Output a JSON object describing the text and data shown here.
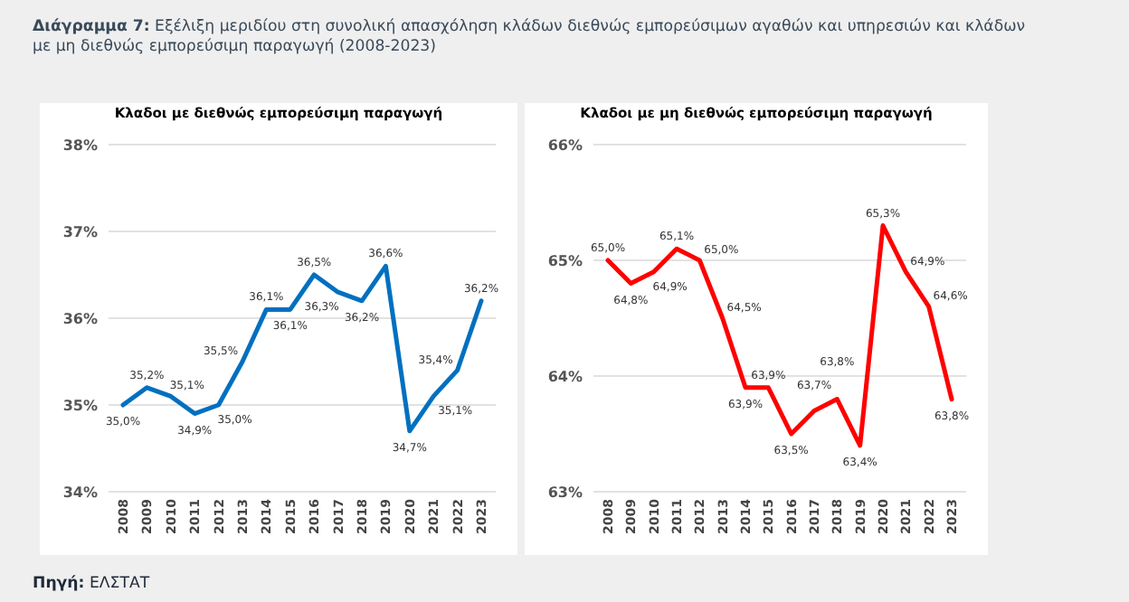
{
  "chart_data": [
    {
      "type": "line",
      "title": "Κλαδοι με διεθνώς εμπορεύσιμη παραγωγή",
      "annotations": [
        "Διάγραμμα 7: Εξέλιξη μεριδίου στη συνολική απασχόληση κλάδων διεθνώς εμπορεύσιμων αγαθών και υπηρεσιών και κλάδων με μη διεθνώς εμπορεύσιμη παραγωγή (2008-2023)",
        "Πηγή: ΕΛΣΤΑΤ"
      ],
      "categories": [
        "2008",
        "2009",
        "2010",
        "2011",
        "2012",
        "2013",
        "2014",
        "2015",
        "2016",
        "2017",
        "2018",
        "2019",
        "2020",
        "2021",
        "2022",
        "2023"
      ],
      "series": [
        {
          "color": "#0070c0",
          "values": [
            35.0,
            35.2,
            35.1,
            34.9,
            35.0,
            35.5,
            36.1,
            36.1,
            36.5,
            36.3,
            36.2,
            36.6,
            34.7,
            35.1,
            35.4,
            36.2
          ],
          "value_labels": [
            "35,0%",
            "35,2%",
            "35,1%",
            "34,9%",
            "35,0%",
            "35,5%",
            "36,1%",
            "36,1%",
            "36,5%",
            "36,3%",
            "36,2%",
            "36,6%",
            "34,7%",
            "35,1%",
            "35,4%",
            "36,2%"
          ]
        }
      ],
      "ylim": [
        34,
        38
      ],
      "yticks": [
        {
          "value": 34,
          "label": "34%"
        },
        {
          "value": 35,
          "label": "35%"
        },
        {
          "value": 36,
          "label": "36%"
        },
        {
          "value": 37,
          "label": "37%"
        },
        {
          "value": 38,
          "label": "38%"
        }
      ],
      "grid": "y"
    },
    {
      "type": "line",
      "title": "Κλαδοι με μη διεθνώς εμπορεύσιμη παραγωγή",
      "categories": [
        "2008",
        "2009",
        "2010",
        "2011",
        "2012",
        "2013",
        "2014",
        "2015",
        "2016",
        "2017",
        "2018",
        "2019",
        "2020",
        "2021",
        "2022",
        "2023"
      ],
      "series": [
        {
          "color": "#ff0000",
          "values": [
            65.0,
            64.8,
            64.9,
            65.1,
            65.0,
            64.5,
            63.9,
            63.9,
            63.5,
            63.7,
            63.8,
            63.4,
            65.3,
            64.9,
            64.6,
            63.8
          ],
          "value_labels": [
            "65,0%",
            "64,8%",
            "64,9%",
            "65,1%",
            "65,0%",
            "64,5%",
            "63,9%",
            "63,9%",
            "63,5%",
            "63,7%",
            "63,8%",
            "63,4%",
            "65,3%",
            "64,9%",
            "64,6%",
            "63,8%"
          ]
        }
      ],
      "ylim": [
        63,
        66
      ],
      "yticks": [
        {
          "value": 63,
          "label": "63%"
        },
        {
          "value": 64,
          "label": "64%"
        },
        {
          "value": 65,
          "label": "65%"
        },
        {
          "value": 66,
          "label": "66%"
        }
      ],
      "grid": "y"
    }
  ]
}
